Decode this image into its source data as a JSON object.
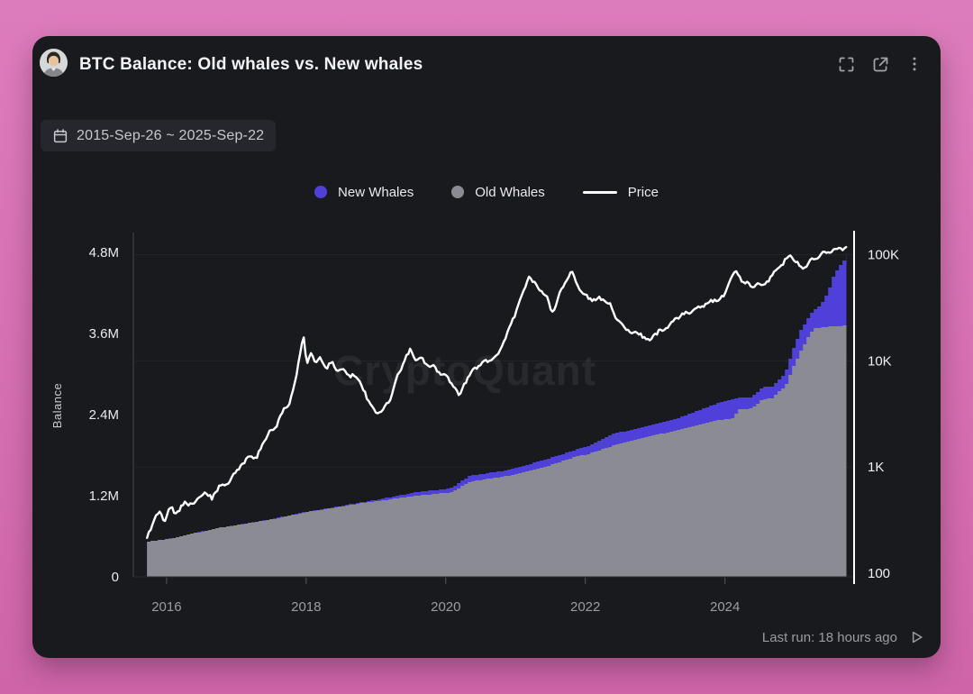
{
  "header": {
    "title": "BTC Balance: Old whales vs. New whales",
    "icons": [
      {
        "name": "fullscreen-icon"
      },
      {
        "name": "open-in-new-icon"
      },
      {
        "name": "more-options-icon"
      }
    ]
  },
  "toolbar": {
    "date_range": "2015-Sep-26 ~ 2025-Sep-22"
  },
  "watermark": "CryptoQuant",
  "footer": {
    "last_run": "Last run: 18 hours ago"
  },
  "colors": {
    "new_whales": "#4f40d9",
    "old_whales": "#8b8b93",
    "price": "#ffffff",
    "card_bg": "#191a1e",
    "page_bg": "#d46fb0"
  },
  "chart_data": {
    "type": "area+line",
    "title": "BTC Balance: Old whales vs. New whales",
    "grid": "horizontal-faint",
    "legend_position": "top-center",
    "legend": [
      {
        "label": "New Whales",
        "color": "#4f40d9",
        "marker": "dot"
      },
      {
        "label": "Old Whales",
        "color": "#8b8b93",
        "marker": "dot"
      },
      {
        "label": "Price",
        "color": "#ffffff",
        "marker": "line"
      }
    ],
    "x_axis": {
      "range": [
        2015.55,
        2025.85
      ],
      "ticks": [
        2016,
        2018,
        2020,
        2022,
        2024
      ]
    },
    "y_left": {
      "label": "Balance",
      "unit": "BTC",
      "range": [
        0,
        5070000
      ],
      "ticks": [
        {
          "v": 0,
          "label": "0"
        },
        {
          "v": 1200000,
          "label": "1.2M"
        },
        {
          "v": 2400000,
          "label": "2.4M"
        },
        {
          "v": 3600000,
          "label": "3.6M"
        },
        {
          "v": 4800000,
          "label": "4.8M"
        }
      ]
    },
    "y_right": {
      "scale": "log",
      "unit": "USD",
      "range": [
        100,
        155000
      ],
      "ticks": [
        {
          "v": 100,
          "label": "100"
        },
        {
          "v": 1000,
          "label": "1K"
        },
        {
          "v": 10000,
          "label": "10K"
        },
        {
          "v": 100000,
          "label": "100K"
        }
      ]
    },
    "series": {
      "old_whales": {
        "name": "Old Whales",
        "axis": "left",
        "style": "area",
        "unit": "M BTC",
        "points": [
          [
            2015.72,
            0.52
          ],
          [
            2016.0,
            0.56
          ],
          [
            2016.71,
            0.72
          ],
          [
            2017.48,
            0.85
          ],
          [
            2018.0,
            0.96
          ],
          [
            2018.77,
            1.09
          ],
          [
            2019.55,
            1.2
          ],
          [
            2020.06,
            1.25
          ],
          [
            2020.19,
            1.33
          ],
          [
            2020.32,
            1.41
          ],
          [
            2020.84,
            1.49
          ],
          [
            2021.35,
            1.61
          ],
          [
            2021.87,
            1.79
          ],
          [
            2022.0,
            1.81
          ],
          [
            2022.39,
            1.95
          ],
          [
            2022.77,
            2.05
          ],
          [
            2023.29,
            2.17
          ],
          [
            2023.81,
            2.31
          ],
          [
            2024.1,
            2.35
          ],
          [
            2024.17,
            2.48
          ],
          [
            2024.36,
            2.49
          ],
          [
            2024.52,
            2.63
          ],
          [
            2024.67,
            2.65
          ],
          [
            2024.75,
            2.75
          ],
          [
            2024.84,
            2.81
          ],
          [
            2024.9,
            2.96
          ],
          [
            2024.94,
            3.09
          ],
          [
            2024.99,
            3.15
          ],
          [
            2025.03,
            3.28
          ],
          [
            2025.1,
            3.41
          ],
          [
            2025.19,
            3.59
          ],
          [
            2025.26,
            3.68
          ],
          [
            2025.35,
            3.69
          ],
          [
            2025.52,
            3.71
          ],
          [
            2025.74,
            3.72
          ]
        ]
      },
      "new_whales": {
        "name": "New Whales",
        "axis": "left",
        "style": "area-stacked-on-old",
        "unit": "M BTC",
        "points": [
          [
            2015.72,
            0.0
          ],
          [
            2018.5,
            0.01
          ],
          [
            2019.0,
            0.02
          ],
          [
            2019.5,
            0.05
          ],
          [
            2020.0,
            0.06
          ],
          [
            2020.35,
            0.09
          ],
          [
            2020.84,
            0.08
          ],
          [
            2021.35,
            0.11
          ],
          [
            2021.87,
            0.1
          ],
          [
            2022.39,
            0.17
          ],
          [
            2022.77,
            0.16
          ],
          [
            2023.29,
            0.17
          ],
          [
            2023.81,
            0.24
          ],
          [
            2024.1,
            0.28
          ],
          [
            2024.17,
            0.17
          ],
          [
            2024.36,
            0.17
          ],
          [
            2024.52,
            0.18
          ],
          [
            2024.75,
            0.17
          ],
          [
            2024.9,
            0.23
          ],
          [
            2025.03,
            0.31
          ],
          [
            2025.1,
            0.3
          ],
          [
            2025.19,
            0.28
          ],
          [
            2025.26,
            0.27
          ],
          [
            2025.35,
            0.33
          ],
          [
            2025.45,
            0.5
          ],
          [
            2025.52,
            0.71
          ],
          [
            2025.6,
            0.85
          ],
          [
            2025.67,
            0.95
          ],
          [
            2025.74,
            1.05
          ]
        ]
      },
      "price": {
        "name": "Price",
        "axis": "right",
        "style": "line",
        "unit": "USD",
        "points": [
          [
            2015.72,
            220
          ],
          [
            2015.83,
            330
          ],
          [
            2015.91,
            400
          ],
          [
            2015.97,
            310
          ],
          [
            2016.06,
            425
          ],
          [
            2016.14,
            360
          ],
          [
            2016.26,
            460
          ],
          [
            2016.39,
            445
          ],
          [
            2016.52,
            560
          ],
          [
            2016.65,
            520
          ],
          [
            2016.77,
            660
          ],
          [
            2016.9,
            720
          ],
          [
            2016.99,
            900
          ],
          [
            2017.1,
            1070
          ],
          [
            2017.2,
            1300
          ],
          [
            2017.29,
            1190
          ],
          [
            2017.38,
            1740
          ],
          [
            2017.48,
            2120
          ],
          [
            2017.59,
            2580
          ],
          [
            2017.68,
            3460
          ],
          [
            2017.77,
            4200
          ],
          [
            2017.85,
            6800
          ],
          [
            2017.91,
            11100
          ],
          [
            2017.96,
            18900
          ],
          [
            2018.01,
            8600
          ],
          [
            2018.06,
            12200
          ],
          [
            2018.13,
            10000
          ],
          [
            2018.21,
            10450
          ],
          [
            2018.28,
            8600
          ],
          [
            2018.36,
            9700
          ],
          [
            2018.44,
            8000
          ],
          [
            2018.52,
            8600
          ],
          [
            2018.59,
            7100
          ],
          [
            2018.67,
            7500
          ],
          [
            2018.75,
            6500
          ],
          [
            2018.83,
            5350
          ],
          [
            2018.9,
            3930
          ],
          [
            2018.98,
            3460
          ],
          [
            2019.06,
            3250
          ],
          [
            2019.14,
            3800
          ],
          [
            2019.23,
            4800
          ],
          [
            2019.32,
            7500
          ],
          [
            2019.42,
            10450
          ],
          [
            2019.5,
            12800
          ],
          [
            2019.57,
            10050
          ],
          [
            2019.65,
            10450
          ],
          [
            2019.74,
            9100
          ],
          [
            2019.83,
            8600
          ],
          [
            2019.94,
            7500
          ],
          [
            2020.03,
            6800
          ],
          [
            2020.12,
            5800
          ],
          [
            2020.19,
            4600
          ],
          [
            2020.27,
            6200
          ],
          [
            2020.35,
            7500
          ],
          [
            2020.43,
            8600
          ],
          [
            2020.5,
            9300
          ],
          [
            2020.58,
            10050
          ],
          [
            2020.67,
            10450
          ],
          [
            2020.75,
            11800
          ],
          [
            2020.84,
            15500
          ],
          [
            2020.93,
            22100
          ],
          [
            2021.01,
            29800
          ],
          [
            2021.1,
            44100
          ],
          [
            2021.19,
            61500
          ],
          [
            2021.26,
            53800
          ],
          [
            2021.35,
            47000
          ],
          [
            2021.45,
            40200
          ],
          [
            2021.51,
            28600
          ],
          [
            2021.59,
            34100
          ],
          [
            2021.66,
            48800
          ],
          [
            2021.74,
            59000
          ],
          [
            2021.81,
            67700
          ],
          [
            2021.88,
            53800
          ],
          [
            2021.96,
            42600
          ],
          [
            2022.04,
            40200
          ],
          [
            2022.13,
            36600
          ],
          [
            2022.21,
            40200
          ],
          [
            2022.28,
            35900
          ],
          [
            2022.36,
            33100
          ],
          [
            2022.44,
            24700
          ],
          [
            2022.52,
            22100
          ],
          [
            2022.59,
            19900
          ],
          [
            2022.67,
            18200
          ],
          [
            2022.75,
            18900
          ],
          [
            2022.83,
            17100
          ],
          [
            2022.9,
            15500
          ],
          [
            2022.98,
            17400
          ],
          [
            2023.06,
            18900
          ],
          [
            2023.14,
            19900
          ],
          [
            2023.21,
            22100
          ],
          [
            2023.29,
            24700
          ],
          [
            2023.38,
            27000
          ],
          [
            2023.46,
            28600
          ],
          [
            2023.55,
            29800
          ],
          [
            2023.64,
            31600
          ],
          [
            2023.73,
            34100
          ],
          [
            2023.81,
            36600
          ],
          [
            2023.9,
            38400
          ],
          [
            2024.0,
            41800
          ],
          [
            2024.08,
            59000
          ],
          [
            2024.15,
            70900
          ],
          [
            2024.23,
            59000
          ],
          [
            2024.31,
            53800
          ],
          [
            2024.39,
            50400
          ],
          [
            2024.45,
            53800
          ],
          [
            2024.53,
            48800
          ],
          [
            2024.61,
            56600
          ],
          [
            2024.68,
            64700
          ],
          [
            2024.76,
            74600
          ],
          [
            2024.84,
            83300
          ],
          [
            2024.93,
            101500
          ],
          [
            2025.01,
            87100
          ],
          [
            2025.08,
            76300
          ],
          [
            2025.16,
            79300
          ],
          [
            2025.24,
            91200
          ],
          [
            2025.32,
            96800
          ],
          [
            2025.39,
            101500
          ],
          [
            2025.47,
            105600
          ],
          [
            2025.55,
            109800
          ],
          [
            2025.63,
            113000
          ],
          [
            2025.71,
            114000
          ],
          [
            2025.76,
            112000
          ]
        ]
      }
    }
  }
}
